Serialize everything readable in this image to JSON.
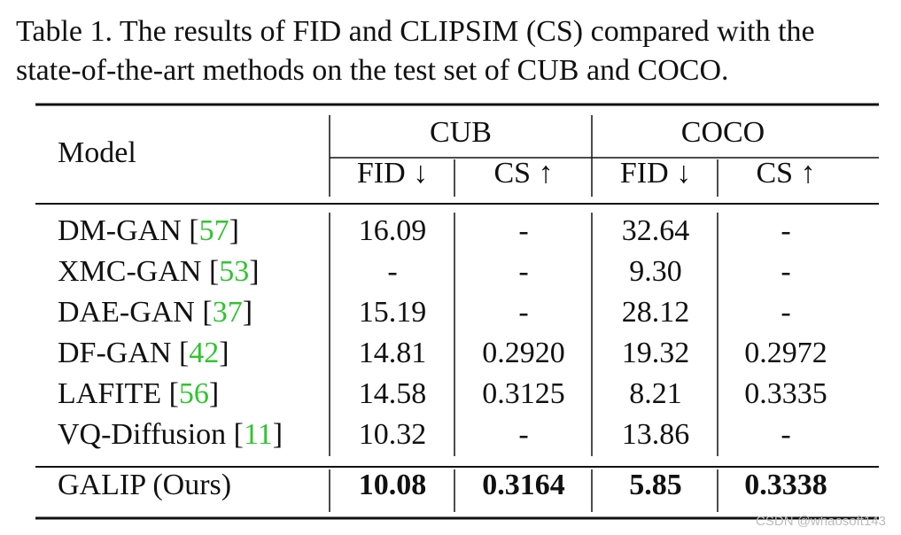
{
  "caption": [
    "Table 1. The results of FID and CLIPSIM (CS) compared with the",
    "state-of-the-art methods on the test set of CUB and COCO."
  ],
  "table": {
    "model_header": "Model",
    "groups": [
      "CUB",
      "COCO"
    ],
    "metrics": [
      "FID ↓",
      "CS ↑",
      "FID ↓",
      "CS ↑"
    ],
    "cite_brackets": [
      "[",
      "]"
    ],
    "rows": [
      {
        "model": "DM-GAN",
        "ref": "57",
        "cells": [
          "16.09",
          "-",
          "32.64",
          "-"
        ]
      },
      {
        "model": "XMC-GAN",
        "ref": "53",
        "cells": [
          "-",
          "-",
          "9.30",
          "-"
        ]
      },
      {
        "model": "DAE-GAN",
        "ref": "37",
        "cells": [
          "15.19",
          "-",
          "28.12",
          "-"
        ]
      },
      {
        "model": "DF-GAN",
        "ref": "42",
        "cells": [
          "14.81",
          "0.2920",
          "19.32",
          "0.2972"
        ]
      },
      {
        "model": "LAFITE",
        "ref": "56",
        "cells": [
          "14.58",
          "0.3125",
          "8.21",
          "0.3335"
        ]
      },
      {
        "model": "VQ-Diffusion",
        "ref": "11",
        "cells": [
          "10.32",
          "-",
          "13.86",
          "-"
        ]
      }
    ],
    "ours": {
      "model": "GALIP (Ours)",
      "cells": [
        "10.08",
        "0.3164",
        "5.85",
        "0.3338"
      ]
    }
  },
  "watermark": "CSDN @whaosoft143"
}
